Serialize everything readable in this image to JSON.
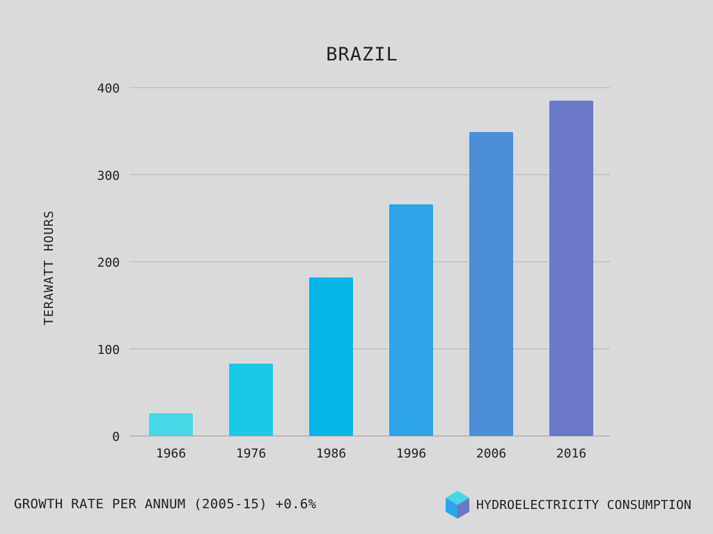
{
  "chart_data": {
    "type": "bar",
    "title": "BRAZIL",
    "ylabel": "TERAWATT HOURS",
    "xlabel": "",
    "categories": [
      "1966",
      "1976",
      "1986",
      "1996",
      "2006",
      "2016"
    ],
    "values": [
      26,
      83,
      182,
      266,
      349,
      385
    ],
    "colors": [
      "#46d8e6",
      "#1ac8ea",
      "#06b6e8",
      "#2ea3e6",
      "#4a8fd8",
      "#6a78c8"
    ],
    "ylim": [
      0,
      400
    ],
    "yticks": [
      "0",
      "100",
      "200",
      "300",
      "400"
    ],
    "grid": true,
    "legend": "none"
  },
  "footer": {
    "growth_text": "GROWTH RATE PER ANNUM (2005-15) +0.6%",
    "brand_label": "HYDROELECTRICITY CONSUMPTION",
    "brand_icon": "cube-icon",
    "icon_colors": {
      "top": "#46d8e6",
      "left": "#2ea3e6",
      "right": "#6a78c8"
    }
  }
}
